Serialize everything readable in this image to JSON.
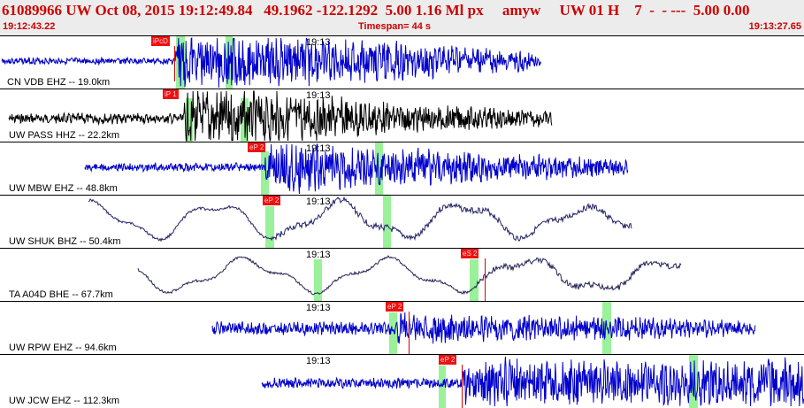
{
  "header": {
    "title": "61089966 UW Oct 08, 2015 19:12:49.84   49.1962 -122.1292  5.00 1.16 Ml px     amyw     UW 01 H    7  -  - ---  5.00 0.00",
    "start_time": "19:12:43.22",
    "timespan": "Timespan=  44 s",
    "end_time": "19:13:27.65"
  },
  "traces": [
    {
      "label": "CN VDB EHZ -- 19.0km",
      "time_tick": "19:13",
      "pick": "iPcD",
      "color": "#0000cc"
    },
    {
      "label": "UW PASS HHZ -- 22.2km",
      "time_tick": "19:13",
      "pick": "iP 1",
      "color": "#000000"
    },
    {
      "label": "UW MBW EHZ -- 48.8km",
      "time_tick": "19:13",
      "pick": "eP 2",
      "color": "#0000cc"
    },
    {
      "label": "UW SHUK BHZ -- 50.4km",
      "time_tick": "19:13",
      "pick": "eP 2",
      "color": "#222266"
    },
    {
      "label": "TA A04D BHE -- 67.7km",
      "time_tick": "19:13",
      "pick": "eS 2",
      "color": "#222255"
    },
    {
      "label": "UW RPW EHZ -- 94.6km",
      "time_tick": "19:13",
      "pick": "eP 2",
      "color": "#0000cc"
    },
    {
      "label": "UW JCW EHZ -- 112.3km",
      "time_tick": "19:13",
      "pick": "eP 2",
      "color": "#0000cc"
    }
  ]
}
